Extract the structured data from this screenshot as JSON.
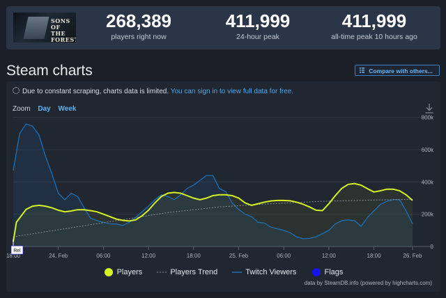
{
  "game": {
    "logo_text": "SONS OF THE FOREST"
  },
  "stats": [
    {
      "value": "268,389",
      "label": "players right now"
    },
    {
      "value": "411,999",
      "label": "24-hour peak"
    },
    {
      "value": "411,999",
      "label": "all-time peak 10 hours ago"
    }
  ],
  "section": {
    "title": "Steam charts",
    "compare_label": "Compare with others..."
  },
  "notice": {
    "text": "Due to constant scraping, charts data is limited.",
    "link": "You can sign in to view full data for free."
  },
  "zoom": {
    "label": "Zoom",
    "options": [
      "Day",
      "Week"
    ]
  },
  "legend": {
    "players": "Players",
    "trend": "Players Trend",
    "twitch": "Twitch Viewers",
    "flags": "Flags"
  },
  "credit": "data by SteamDB.info (powered by highcharts.com)",
  "flag_label": "Rel",
  "colors": {
    "players": "#d6f227",
    "trend": "#8a8f96",
    "twitch": "#1f6fb5",
    "flags": "#1414ef",
    "link": "#4fa8ea"
  },
  "chart_data": {
    "type": "line",
    "x_tick_labels": [
      "18:00",
      "24. Feb",
      "06:00",
      "12:00",
      "18:00",
      "25. Feb",
      "06:00",
      "12:00",
      "18:00",
      "26. Feb"
    ],
    "y_tick_labels": [
      "0",
      "200k",
      "400k",
      "600k",
      "800k"
    ],
    "ylim": [
      0,
      850000
    ],
    "grid": true,
    "legend_position": "bottom",
    "series": [
      {
        "name": "Players",
        "x": [
          0,
          0.25,
          1,
          1.5,
          2,
          2.5,
          3,
          3.5,
          4,
          4.5,
          5,
          5.5,
          6,
          6.5,
          7,
          7.5,
          8,
          8.5,
          9,
          9.5,
          10,
          10.5,
          11,
          11.5,
          12,
          12.5,
          13,
          13.5,
          14,
          14.5,
          15,
          15.5,
          16,
          16.5,
          17,
          17.5,
          18,
          18.5,
          19,
          19.5,
          20,
          20.5,
          21,
          21.5,
          22,
          22.5,
          23,
          23.5,
          24,
          24.5,
          25,
          25.5,
          26,
          26.5,
          27,
          27.5,
          28,
          28.5,
          29,
          29.5,
          30,
          30.5,
          31
        ],
        "values": [
          30000,
          150000,
          230000,
          250000,
          255000,
          250000,
          240000,
          225000,
          215000,
          220000,
          228000,
          228000,
          222000,
          215000,
          200000,
          185000,
          170000,
          162000,
          158000,
          165000,
          190000,
          225000,
          270000,
          310000,
          330000,
          335000,
          330000,
          315000,
          300000,
          290000,
          300000,
          315000,
          320000,
          320000,
          315000,
          300000,
          270000,
          255000,
          265000,
          275000,
          282000,
          285000,
          285000,
          283000,
          275000,
          262000,
          245000,
          225000,
          222000,
          265000,
          315000,
          360000,
          385000,
          390000,
          380000,
          358000,
          338000,
          345000,
          355000,
          355000,
          345000,
          320000,
          285000
        ]
      },
      {
        "name": "Players Trend",
        "x": [
          0,
          4,
          8,
          12,
          16,
          20,
          24,
          28,
          31
        ],
        "values": [
          60000,
          110000,
          160000,
          210000,
          245000,
          265000,
          280000,
          288000,
          292000
        ]
      },
      {
        "name": "Twitch Viewers",
        "x": [
          0,
          0.5,
          1,
          1.5,
          2,
          2.5,
          3,
          3.5,
          4,
          4.5,
          5,
          5.5,
          6,
          6.5,
          7,
          7.5,
          8,
          8.5,
          9,
          9.5,
          10,
          10.5,
          11,
          11.5,
          12,
          12.5,
          13,
          13.5,
          14,
          14.5,
          15,
          15.5,
          16,
          16.5,
          17,
          17.5,
          18,
          18.5,
          19,
          19.5,
          20,
          20.5,
          21,
          21.5,
          22,
          22.5,
          23,
          23.5,
          24,
          24.5,
          25,
          25.5,
          26,
          26.5,
          27,
          27.5,
          28,
          28.5,
          29,
          29.5,
          30,
          30.5,
          31
        ],
        "values": [
          470000,
          700000,
          760000,
          745000,
          690000,
          560000,
          450000,
          330000,
          290000,
          330000,
          310000,
          240000,
          175000,
          160000,
          150000,
          140000,
          140000,
          130000,
          150000,
          180000,
          215000,
          250000,
          290000,
          320000,
          310000,
          290000,
          320000,
          360000,
          380000,
          410000,
          440000,
          440000,
          360000,
          340000,
          270000,
          230000,
          200000,
          185000,
          150000,
          145000,
          120000,
          110000,
          100000,
          85000,
          60000,
          48000,
          50000,
          60000,
          80000,
          100000,
          140000,
          160000,
          165000,
          160000,
          125000,
          180000,
          220000,
          260000,
          280000,
          290000,
          290000,
          220000,
          140000
        ]
      }
    ]
  }
}
